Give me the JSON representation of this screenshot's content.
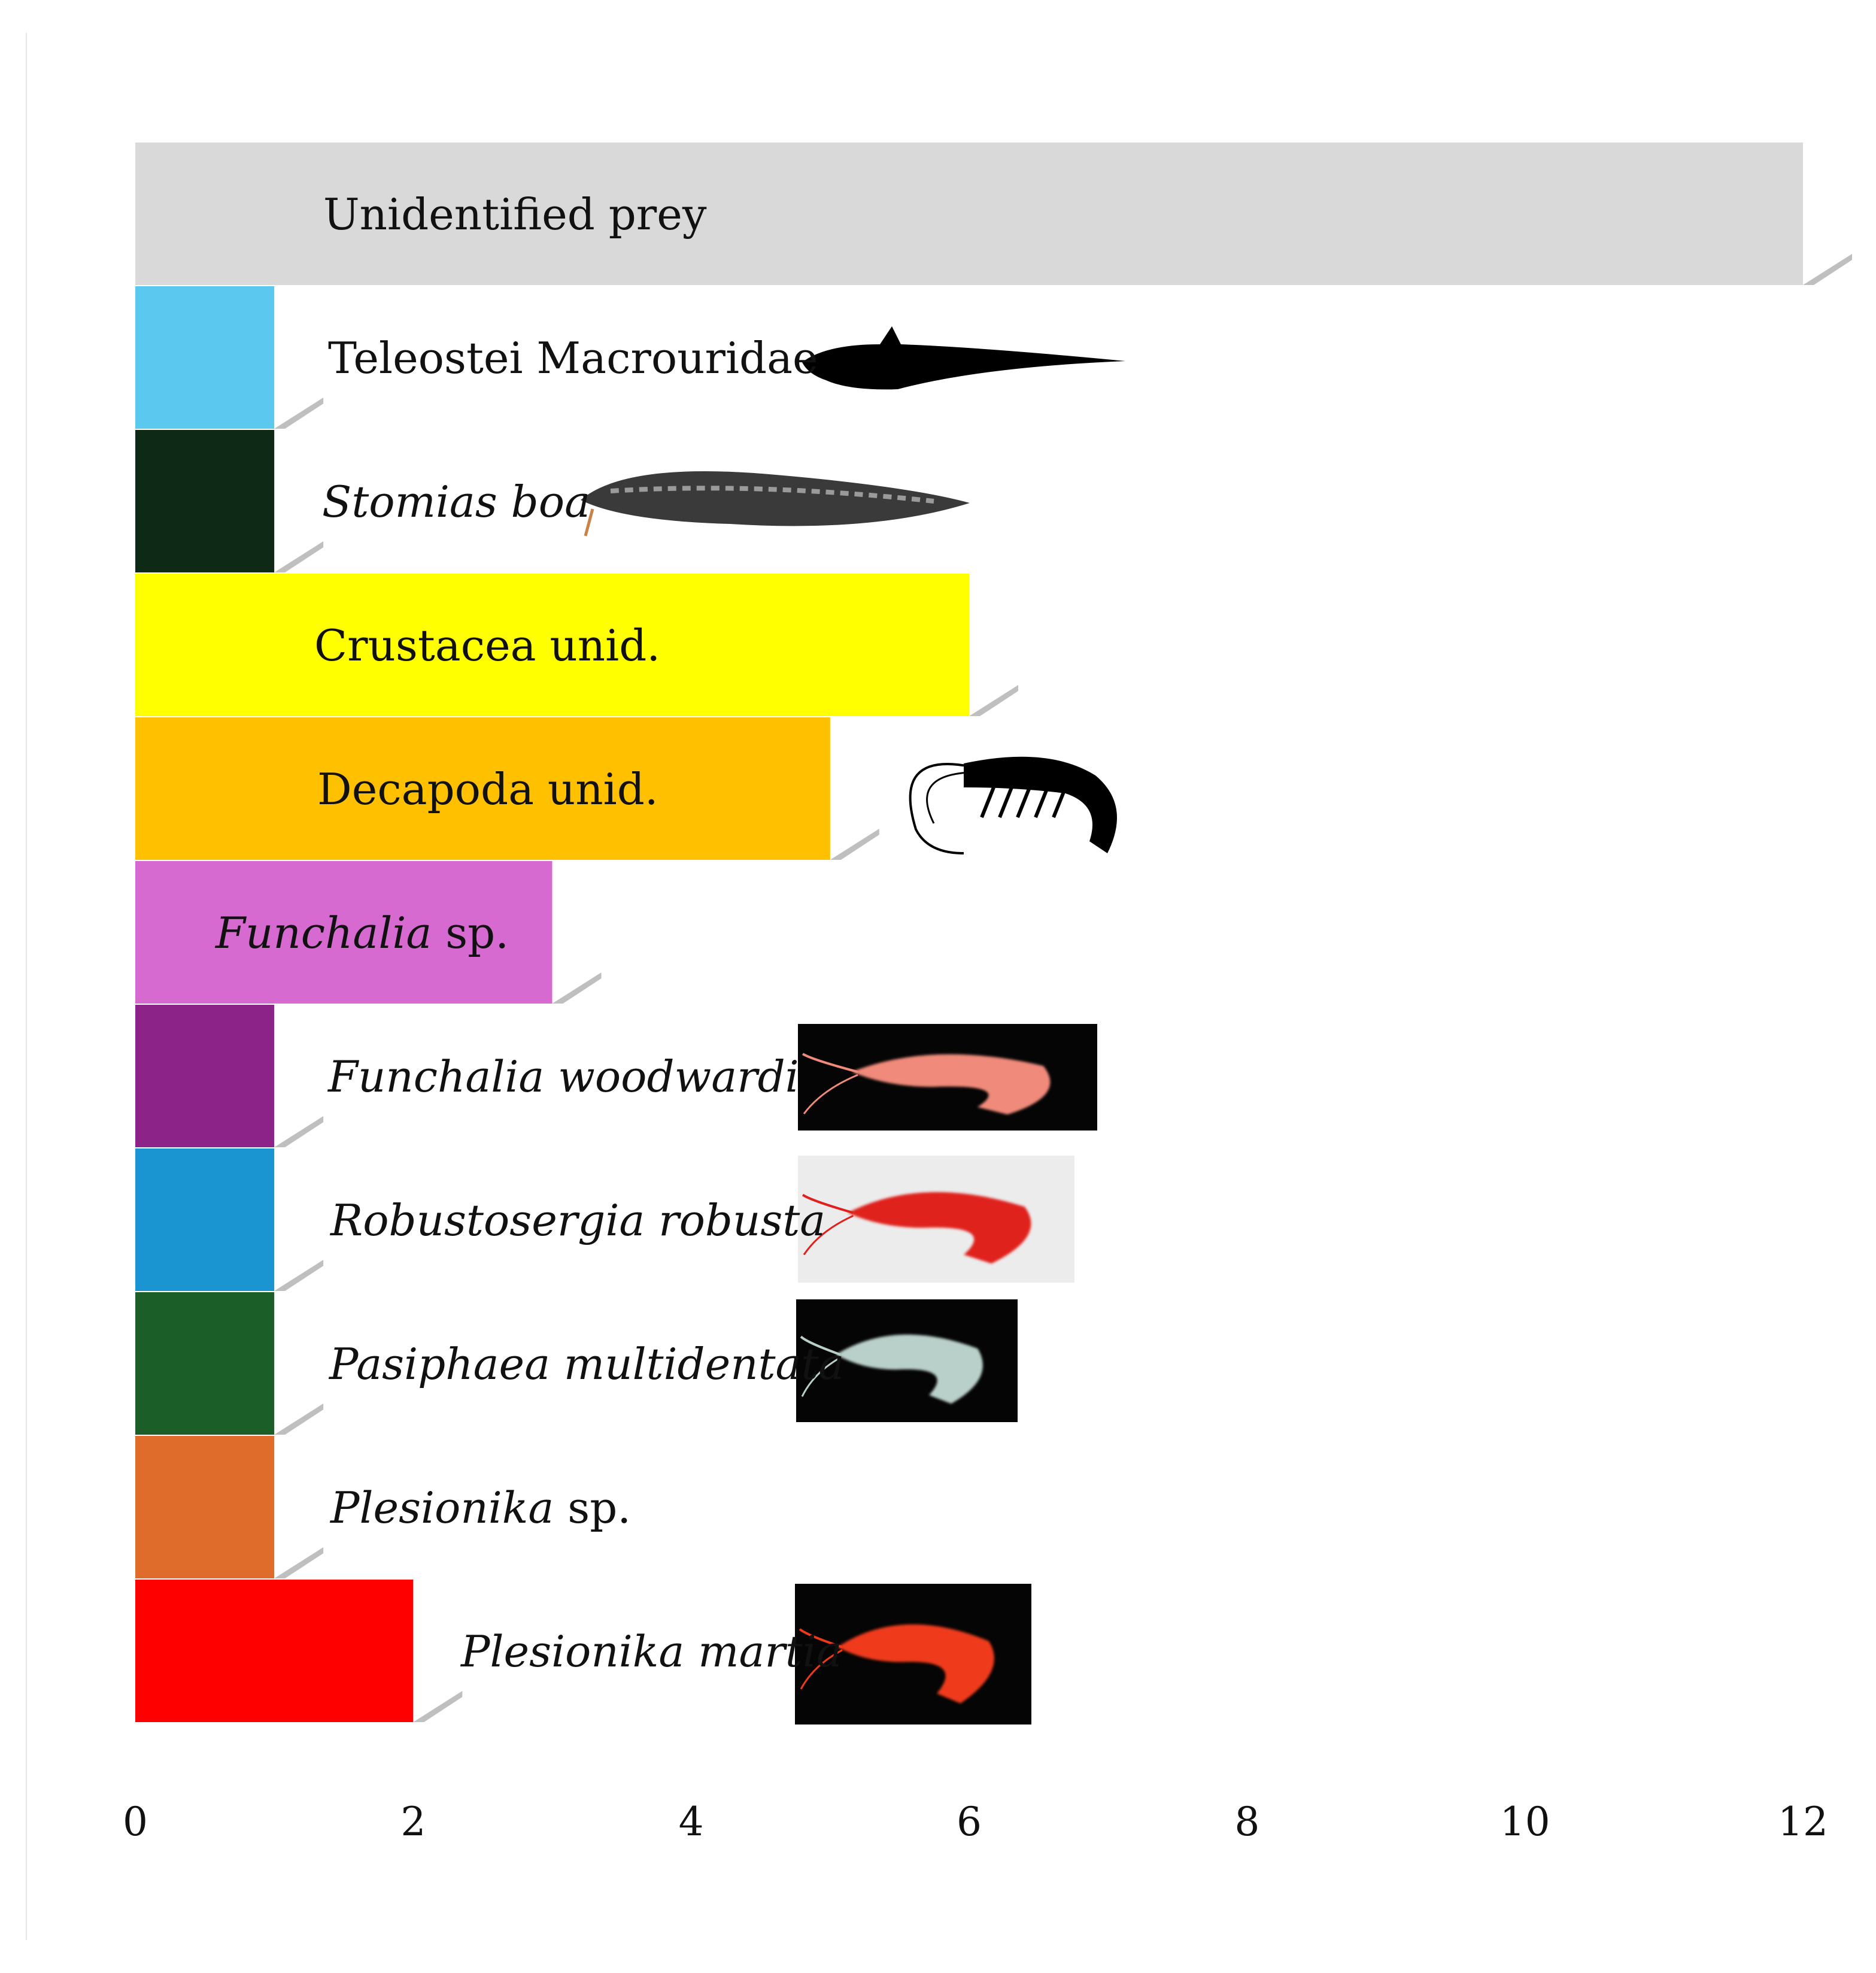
{
  "chart_data": {
    "type": "bar",
    "orientation": "horizontal",
    "categories": [
      {
        "parts": [
          {
            "t": "Unidentified prey",
            "i": false
          }
        ]
      },
      {
        "parts": [
          {
            "t": "Teleostei Macrouridae",
            "i": false
          }
        ]
      },
      {
        "parts": [
          {
            "t": "Stomias boa",
            "i": true
          }
        ]
      },
      {
        "parts": [
          {
            "t": "Crustacea unid.",
            "i": false
          }
        ]
      },
      {
        "parts": [
          {
            "t": "Decapoda unid.",
            "i": false
          }
        ]
      },
      {
        "parts": [
          {
            "t": "Funchalia",
            "i": true
          },
          {
            "t": " sp.",
            "i": false
          }
        ]
      },
      {
        "parts": [
          {
            "t": "Funchalia woodwardi",
            "i": true
          }
        ]
      },
      {
        "parts": [
          {
            "t": "Robustosergia robusta",
            "i": true
          }
        ]
      },
      {
        "parts": [
          {
            "t": "Pasiphaea multidentata",
            "i": true
          }
        ]
      },
      {
        "parts": [
          {
            "t": "Plesionika",
            "i": true
          },
          {
            "t": " sp.",
            "i": false
          }
        ]
      },
      {
        "parts": [
          {
            "t": "Plesionika martia",
            "i": true
          }
        ]
      }
    ],
    "values": [
      12,
      1,
      1,
      6,
      5,
      3,
      1,
      1,
      1,
      1,
      2
    ],
    "colors": [
      "#d9d9d9",
      "#5bc8f0",
      "#0e2a16",
      "#ffff00",
      "#ffc000",
      "#d76ad0",
      "#8b2389",
      "#1b95d1",
      "#1c5e27",
      "#e06c2c",
      "#ff0000"
    ],
    "illustrations": [
      "",
      "fish-silhouette",
      "stomias-photo",
      "",
      "shrimp-silhouette",
      "",
      "shrimp-photo",
      "shrimp-photo",
      "shrimp-photo",
      "",
      "shrimp-photo"
    ],
    "xticks": [
      "0",
      "2",
      "4",
      "6",
      "8",
      "10",
      "12"
    ],
    "xlim": [
      0,
      12
    ],
    "title": "",
    "xlabel": "",
    "ylabel": "",
    "grid": false,
    "legend": false
  }
}
